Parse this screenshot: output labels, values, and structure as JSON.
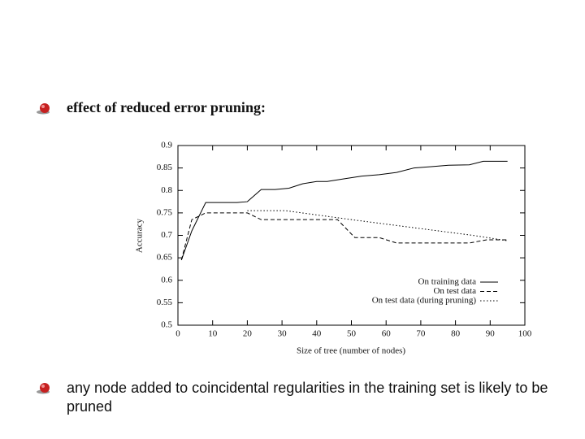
{
  "chart_data": {
    "type": "line",
    "xlabel": "Size of tree (number of nodes)",
    "ylabel": "Accuracy",
    "xlim": [
      0,
      100
    ],
    "xticks": [
      0,
      10,
      20,
      30,
      40,
      50,
      60,
      70,
      80,
      90,
      100
    ],
    "ylim": [
      0.5,
      0.9
    ],
    "yticks": [
      0.5,
      0.55,
      0.6,
      0.65,
      0.7,
      0.75,
      0.8,
      0.85,
      0.9
    ],
    "legend": "lower right",
    "series": [
      {
        "name": "On training data",
        "color": "#000000",
        "dash": "solid",
        "x": [
          1,
          4,
          8,
          12,
          17,
          20,
          24,
          28,
          32,
          36,
          40,
          43,
          48,
          53,
          58,
          63,
          68,
          73,
          78,
          84,
          88,
          95
        ],
        "values": [
          0.645,
          0.71,
          0.773,
          0.773,
          0.773,
          0.775,
          0.802,
          0.802,
          0.805,
          0.815,
          0.82,
          0.82,
          0.826,
          0.832,
          0.835,
          0.84,
          0.85,
          0.853,
          0.856,
          0.857,
          0.865,
          0.865
        ]
      },
      {
        "name": "On test data",
        "color": "#000000",
        "dash": "dashed",
        "x": [
          1,
          4,
          8,
          20,
          24,
          46,
          51,
          58,
          63,
          84,
          89,
          95
        ],
        "values": [
          0.645,
          0.735,
          0.75,
          0.75,
          0.735,
          0.735,
          0.695,
          0.695,
          0.683,
          0.683,
          0.69,
          0.69
        ]
      },
      {
        "name": "On test data (during pruning)",
        "color": "#000000",
        "dash": "dotted",
        "x": [
          20,
          31,
          50,
          70,
          85,
          95
        ],
        "values": [
          0.755,
          0.755,
          0.735,
          0.715,
          0.7,
          0.688
        ]
      }
    ]
  },
  "bullets": [
    "effect of reduced error pruning:",
    "any node added to coincidental regularities in the training set is likely to be pruned"
  ]
}
